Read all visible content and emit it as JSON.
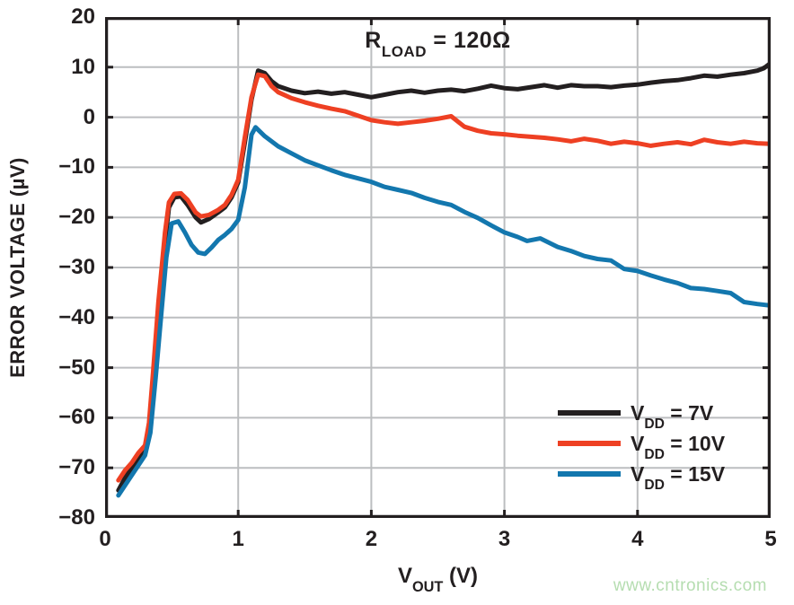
{
  "watermark": {
    "text": "www.cntronics.com",
    "color": "#b5ddb0"
  },
  "chart_data": {
    "type": "line",
    "annotation": {
      "pre": "R",
      "sub": "LOAD",
      "post": " = 120Ω"
    },
    "xlabel_parts": {
      "pre": "V",
      "sub": "OUT",
      "post": " (V)"
    },
    "ylabel": "ERROR VOLTAGE (µV)",
    "xlim": [
      0,
      5
    ],
    "ylim": [
      -80,
      20
    ],
    "grid": true,
    "legend_position": "lower right",
    "frame_color": "#231f20",
    "grid_color": "#bcbec0",
    "x_ticks": {
      "values": [
        0,
        1,
        2,
        3,
        4,
        5
      ],
      "labels": [
        "0",
        "1",
        "2",
        "3",
        "4",
        "5"
      ]
    },
    "y_ticks": {
      "values": [
        20,
        10,
        0,
        -10,
        -20,
        -30,
        -40,
        -50,
        -60,
        -70,
        -80
      ],
      "labels": [
        "20",
        "10",
        "0",
        "−10",
        "−20",
        "−30",
        "−40",
        "−50",
        "−60",
        "−70",
        "−80"
      ]
    },
    "series": [
      {
        "name": "VDD = 7V",
        "legend": {
          "pre": "V",
          "sub": "DD",
          "post": " = 7V"
        },
        "color": "#231f20",
        "points": [
          [
            0.1,
            -74.5
          ],
          [
            0.15,
            -72.0
          ],
          [
            0.2,
            -70.0
          ],
          [
            0.25,
            -68.0
          ],
          [
            0.3,
            -66.5
          ],
          [
            0.33,
            -62
          ],
          [
            0.36,
            -52
          ],
          [
            0.4,
            -39
          ],
          [
            0.45,
            -25
          ],
          [
            0.48,
            -18
          ],
          [
            0.52,
            -16.0
          ],
          [
            0.57,
            -15.8
          ],
          [
            0.62,
            -17.5
          ],
          [
            0.68,
            -20.0
          ],
          [
            0.72,
            -21.0
          ],
          [
            0.78,
            -20.3
          ],
          [
            0.85,
            -19.0
          ],
          [
            0.9,
            -18.0
          ],
          [
            0.95,
            -16.0
          ],
          [
            1.0,
            -13.0
          ],
          [
            1.05,
            -5.0
          ],
          [
            1.1,
            3.5
          ],
          [
            1.15,
            9.3
          ],
          [
            1.2,
            8.8
          ],
          [
            1.25,
            7.2
          ],
          [
            1.3,
            6.2
          ],
          [
            1.4,
            5.3
          ],
          [
            1.5,
            4.8
          ],
          [
            1.6,
            5.1
          ],
          [
            1.7,
            4.7
          ],
          [
            1.8,
            5.0
          ],
          [
            1.9,
            4.5
          ],
          [
            2.0,
            4.0
          ],
          [
            2.1,
            4.5
          ],
          [
            2.2,
            5.0
          ],
          [
            2.3,
            5.3
          ],
          [
            2.4,
            4.9
          ],
          [
            2.5,
            5.3
          ],
          [
            2.6,
            5.5
          ],
          [
            2.7,
            5.2
          ],
          [
            2.8,
            5.7
          ],
          [
            2.9,
            6.3
          ],
          [
            3.0,
            5.8
          ],
          [
            3.1,
            5.6
          ],
          [
            3.2,
            6.0
          ],
          [
            3.3,
            6.4
          ],
          [
            3.4,
            5.9
          ],
          [
            3.5,
            6.4
          ],
          [
            3.6,
            6.2
          ],
          [
            3.7,
            6.2
          ],
          [
            3.8,
            6.0
          ],
          [
            3.9,
            6.3
          ],
          [
            4.0,
            6.5
          ],
          [
            4.1,
            6.9
          ],
          [
            4.2,
            7.2
          ],
          [
            4.3,
            7.4
          ],
          [
            4.4,
            7.8
          ],
          [
            4.5,
            8.3
          ],
          [
            4.6,
            8.1
          ],
          [
            4.7,
            8.5
          ],
          [
            4.8,
            8.8
          ],
          [
            4.9,
            9.3
          ],
          [
            4.95,
            9.8
          ],
          [
            5.0,
            10.8
          ]
        ]
      },
      {
        "name": "VDD = 10V",
        "legend": {
          "pre": "V",
          "sub": "DD",
          "post": " = 10V"
        },
        "color": "#ee4023",
        "points": [
          [
            0.1,
            -72.5
          ],
          [
            0.15,
            -70.5
          ],
          [
            0.2,
            -69.0
          ],
          [
            0.25,
            -67.0
          ],
          [
            0.3,
            -65.5
          ],
          [
            0.33,
            -61
          ],
          [
            0.36,
            -51
          ],
          [
            0.4,
            -37
          ],
          [
            0.45,
            -23
          ],
          [
            0.48,
            -17
          ],
          [
            0.52,
            -15.3
          ],
          [
            0.57,
            -15.2
          ],
          [
            0.62,
            -16.5
          ],
          [
            0.68,
            -19.0
          ],
          [
            0.72,
            -19.8
          ],
          [
            0.78,
            -19.5
          ],
          [
            0.85,
            -18.5
          ],
          [
            0.9,
            -17.5
          ],
          [
            0.95,
            -15.5
          ],
          [
            1.0,
            -12.5
          ],
          [
            1.05,
            -4.0
          ],
          [
            1.1,
            4.0
          ],
          [
            1.15,
            8.5
          ],
          [
            1.2,
            8.2
          ],
          [
            1.25,
            6.2
          ],
          [
            1.3,
            5.0
          ],
          [
            1.4,
            3.8
          ],
          [
            1.5,
            3.0
          ],
          [
            1.6,
            2.3
          ],
          [
            1.7,
            1.7
          ],
          [
            1.8,
            1.2
          ],
          [
            1.9,
            0.3
          ],
          [
            2.0,
            -0.6
          ],
          [
            2.1,
            -1.0
          ],
          [
            2.2,
            -1.3
          ],
          [
            2.3,
            -1.0
          ],
          [
            2.4,
            -0.7
          ],
          [
            2.5,
            -0.3
          ],
          [
            2.6,
            0.2
          ],
          [
            2.7,
            -1.9
          ],
          [
            2.8,
            -2.7
          ],
          [
            2.9,
            -3.2
          ],
          [
            3.0,
            -3.4
          ],
          [
            3.1,
            -3.7
          ],
          [
            3.2,
            -3.9
          ],
          [
            3.3,
            -4.1
          ],
          [
            3.4,
            -4.4
          ],
          [
            3.5,
            -4.8
          ],
          [
            3.6,
            -4.3
          ],
          [
            3.7,
            -4.7
          ],
          [
            3.8,
            -5.3
          ],
          [
            3.9,
            -4.9
          ],
          [
            4.0,
            -5.2
          ],
          [
            4.1,
            -5.7
          ],
          [
            4.2,
            -5.3
          ],
          [
            4.3,
            -5.0
          ],
          [
            4.4,
            -5.4
          ],
          [
            4.5,
            -4.5
          ],
          [
            4.6,
            -5.0
          ],
          [
            4.7,
            -5.3
          ],
          [
            4.8,
            -4.9
          ],
          [
            4.9,
            -5.2
          ],
          [
            5.0,
            -5.3
          ]
        ]
      },
      {
        "name": "VDD = 15V",
        "legend": {
          "pre": "V",
          "sub": "DD",
          "post": " = 15V"
        },
        "color": "#1377ae",
        "points": [
          [
            0.1,
            -75.5
          ],
          [
            0.15,
            -73.5
          ],
          [
            0.2,
            -71.5
          ],
          [
            0.25,
            -69.5
          ],
          [
            0.3,
            -67.5
          ],
          [
            0.34,
            -63
          ],
          [
            0.38,
            -52
          ],
          [
            0.42,
            -40
          ],
          [
            0.46,
            -28
          ],
          [
            0.5,
            -21.2
          ],
          [
            0.55,
            -20.8
          ],
          [
            0.6,
            -23.0
          ],
          [
            0.65,
            -25.5
          ],
          [
            0.7,
            -27.0
          ],
          [
            0.75,
            -27.3
          ],
          [
            0.8,
            -26.0
          ],
          [
            0.85,
            -24.5
          ],
          [
            0.9,
            -23.5
          ],
          [
            0.95,
            -22.3
          ],
          [
            1.0,
            -20.5
          ],
          [
            1.05,
            -14.0
          ],
          [
            1.1,
            -3.5
          ],
          [
            1.13,
            -2.0
          ],
          [
            1.2,
            -3.8
          ],
          [
            1.3,
            -5.8
          ],
          [
            1.4,
            -7.2
          ],
          [
            1.5,
            -8.6
          ],
          [
            1.6,
            -9.6
          ],
          [
            1.7,
            -10.6
          ],
          [
            1.8,
            -11.5
          ],
          [
            1.9,
            -12.2
          ],
          [
            2.0,
            -12.9
          ],
          [
            2.1,
            -13.9
          ],
          [
            2.2,
            -14.5
          ],
          [
            2.3,
            -15.1
          ],
          [
            2.4,
            -16.1
          ],
          [
            2.5,
            -16.9
          ],
          [
            2.6,
            -17.5
          ],
          [
            2.7,
            -18.9
          ],
          [
            2.8,
            -20.1
          ],
          [
            2.9,
            -21.6
          ],
          [
            3.0,
            -23.0
          ],
          [
            3.1,
            -23.9
          ],
          [
            3.17,
            -24.7
          ],
          [
            3.27,
            -24.2
          ],
          [
            3.4,
            -25.9
          ],
          [
            3.5,
            -26.7
          ],
          [
            3.6,
            -27.7
          ],
          [
            3.7,
            -28.3
          ],
          [
            3.8,
            -28.6
          ],
          [
            3.9,
            -30.3
          ],
          [
            4.0,
            -30.7
          ],
          [
            4.1,
            -31.6
          ],
          [
            4.2,
            -32.4
          ],
          [
            4.3,
            -33.1
          ],
          [
            4.4,
            -34.1
          ],
          [
            4.5,
            -34.3
          ],
          [
            4.6,
            -34.7
          ],
          [
            4.7,
            -35.1
          ],
          [
            4.8,
            -36.9
          ],
          [
            4.9,
            -37.3
          ],
          [
            5.0,
            -37.6
          ]
        ]
      }
    ]
  }
}
